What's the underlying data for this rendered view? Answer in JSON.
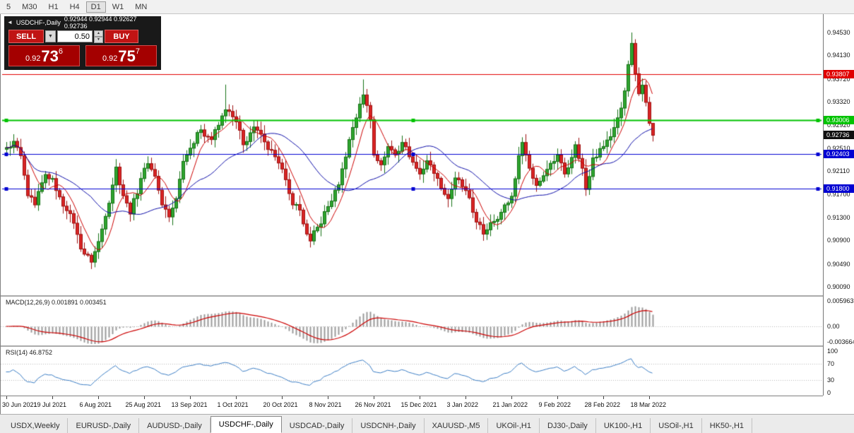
{
  "toolbar": {
    "timeframes": [
      {
        "label": "5",
        "active": false
      },
      {
        "label": "M30",
        "active": false
      },
      {
        "label": "H1",
        "active": false
      },
      {
        "label": "H4",
        "active": false
      },
      {
        "label": "D1",
        "active": true
      },
      {
        "label": "W1",
        "active": false
      },
      {
        "label": "MN",
        "active": false
      }
    ]
  },
  "trade_panel": {
    "collapse_icon": "◄",
    "sell_label": "SELL",
    "buy_label": "BUY",
    "volume": "0.50",
    "sell_price": {
      "base": "0.92",
      "big": "73",
      "sup": "6"
    },
    "buy_price": {
      "base": "0.92",
      "big": "75",
      "sup": "7"
    }
  },
  "chart_data": {
    "type": "candlestick",
    "title": "USDCHF-,Daily",
    "ohlc_text": "0.92944 0.92944 0.92627 0.92736",
    "last_ohlc": {
      "open": 0.92944,
      "high": 0.92944,
      "low": 0.92627,
      "close": 0.92736
    },
    "current_price": 0.92736,
    "current_price_label": "0.92736",
    "ylim": [
      0.899,
      0.9485
    ],
    "y_ticks": [
      "0.94530",
      "0.94130",
      "0.93720",
      "0.93320",
      "0.92920",
      "0.92510",
      "0.92110",
      "0.91700",
      "0.91300",
      "0.90900",
      "0.90490",
      "0.90090"
    ],
    "x_labels": [
      {
        "label": "30 Jun 2021",
        "index": 0
      },
      {
        "label": "19 Jul 2021",
        "index": 13
      },
      {
        "label": "6 Aug 2021",
        "index": 26
      },
      {
        "label": "25 Aug 2021",
        "index": 39
      },
      {
        "label": "13 Sep 2021",
        "index": 52
      },
      {
        "label": "1 Oct 2021",
        "index": 65
      },
      {
        "label": "20 Oct 2021",
        "index": 78
      },
      {
        "label": "8 Nov 2021",
        "index": 91
      },
      {
        "label": "26 Nov 2021",
        "index": 104
      },
      {
        "label": "15 Dec 2021",
        "index": 117
      },
      {
        "label": "3 Jan 2022",
        "index": 130
      },
      {
        "label": "21 Jan 2022",
        "index": 143
      },
      {
        "label": "9 Feb 2022",
        "index": 156
      },
      {
        "label": "28 Feb 2022",
        "index": 169
      },
      {
        "label": "18 Mar 2022",
        "index": 182
      }
    ],
    "candles_count": 184,
    "close_waypoints": [
      [
        0,
        0.9252
      ],
      [
        2,
        0.9263
      ],
      [
        4,
        0.9238
      ],
      [
        6,
        0.9168
      ],
      [
        8,
        0.9152
      ],
      [
        11,
        0.9205
      ],
      [
        13,
        0.9198
      ],
      [
        15,
        0.9166
      ],
      [
        17,
        0.9142
      ],
      [
        19,
        0.912
      ],
      [
        21,
        0.9075
      ],
      [
        24,
        0.9052
      ],
      [
        26,
        0.9088
      ],
      [
        28,
        0.9132
      ],
      [
        31,
        0.9218
      ],
      [
        33,
        0.9168
      ],
      [
        35,
        0.9136
      ],
      [
        38,
        0.9198
      ],
      [
        40,
        0.9224
      ],
      [
        42,
        0.9202
      ],
      [
        44,
        0.9152
      ],
      [
        46,
        0.9131
      ],
      [
        48,
        0.9163
      ],
      [
        50,
        0.9228
      ],
      [
        52,
        0.9251
      ],
      [
        55,
        0.9283
      ],
      [
        58,
        0.9266
      ],
      [
        60,
        0.9291
      ],
      [
        62,
        0.9318
      ],
      [
        65,
        0.9297
      ],
      [
        67,
        0.9257
      ],
      [
        70,
        0.9288
      ],
      [
        73,
        0.9262
      ],
      [
        76,
        0.9236
      ],
      [
        79,
        0.9196
      ],
      [
        81,
        0.9152
      ],
      [
        83,
        0.9143
      ],
      [
        86,
        0.9089
      ],
      [
        88,
        0.9113
      ],
      [
        91,
        0.9149
      ],
      [
        94,
        0.9187
      ],
      [
        97,
        0.9266
      ],
      [
        100,
        0.9328
      ],
      [
        101,
        0.9344
      ],
      [
        103,
        0.9301
      ],
      [
        104,
        0.9239
      ],
      [
        106,
        0.9222
      ],
      [
        108,
        0.9254
      ],
      [
        110,
        0.9241
      ],
      [
        112,
        0.9261
      ],
      [
        114,
        0.9236
      ],
      [
        117,
        0.9206
      ],
      [
        119,
        0.9229
      ],
      [
        121,
        0.9207
      ],
      [
        123,
        0.9181
      ],
      [
        125,
        0.9163
      ],
      [
        127,
        0.9199
      ],
      [
        130,
        0.9177
      ],
      [
        132,
        0.9139
      ],
      [
        135,
        0.9101
      ],
      [
        137,
        0.9121
      ],
      [
        140,
        0.9139
      ],
      [
        143,
        0.9167
      ],
      [
        145,
        0.9238
      ],
      [
        146,
        0.9261
      ],
      [
        148,
        0.9216
      ],
      [
        150,
        0.9186
      ],
      [
        153,
        0.9214
      ],
      [
        156,
        0.9239
      ],
      [
        158,
        0.9206
      ],
      [
        161,
        0.9257
      ],
      [
        163,
        0.9216
      ],
      [
        164,
        0.9179
      ],
      [
        166,
        0.9234
      ],
      [
        169,
        0.9254
      ],
      [
        171,
        0.9271
      ],
      [
        172,
        0.9287
      ],
      [
        174,
        0.9321
      ],
      [
        175,
        0.9351
      ],
      [
        176,
        0.9397
      ],
      [
        177,
        0.9434
      ],
      [
        178,
        0.9381
      ],
      [
        179,
        0.9346
      ],
      [
        180,
        0.9361
      ],
      [
        181,
        0.9331
      ],
      [
        182,
        0.92944
      ],
      [
        183,
        0.92736
      ]
    ],
    "special_candles": [
      {
        "i": 24,
        "l": 0.904
      },
      {
        "i": 62,
        "h": 0.9362
      },
      {
        "i": 101,
        "h": 0.9371
      },
      {
        "i": 177,
        "h": 0.9453
      },
      {
        "i": 183,
        "o": 0.92944,
        "h": 0.92944,
        "l": 0.92627,
        "c": 0.92736
      }
    ],
    "overlays": {
      "ma_fast": {
        "period": 7,
        "color": "#cc0000"
      },
      "ma_slow": {
        "period": 25,
        "color": "#0d0da8"
      }
    },
    "horizontal_lines": [
      {
        "price": 0.93807,
        "label": "0.93807",
        "color": "#e00000",
        "width": 1,
        "handles": false
      },
      {
        "price": 0.93006,
        "label": "0.93006",
        "color": "#00c300",
        "width": 2,
        "handles": true
      },
      {
        "price": 0.92403,
        "label": "0.92403",
        "color": "#0000d2",
        "width": 1,
        "handles": true
      },
      {
        "price": 0.918,
        "label": "0.91800",
        "color": "#0000d2",
        "width": 1,
        "handles": true
      }
    ],
    "macd": {
      "header": "MACD(12,26,9) 0.001891 0.003451",
      "fast": 12,
      "slow": 26,
      "signal": 9,
      "current": 0.001891,
      "current_signal": 0.003451,
      "axis": [
        {
          "text": "0.005963",
          "value": 0.005963
        },
        {
          "text": "0.00",
          "value": 0
        },
        {
          "text": "-0.003664",
          "value": -0.003664
        }
      ]
    },
    "rsi": {
      "header": "RSI(14) 46.8752",
      "period": 14,
      "current": 46.8752,
      "levels": [
        70,
        30
      ],
      "axis": [
        {
          "text": "100",
          "value": 100
        },
        {
          "text": "70",
          "value": 70
        },
        {
          "text": "30",
          "value": 30
        },
        {
          "text": "0",
          "value": 0
        }
      ]
    },
    "colors": {
      "up_body": "#2fa52f",
      "up_line": "#157015",
      "down_body": "#d92525",
      "down_line": "#9e1111",
      "macd_hist": "#9b9b9b",
      "macd_signal": "#cc0000",
      "rsi_line": "#3b7dc4",
      "level_dotted": "#b8b8b8",
      "current_price_label_bg": "#101010"
    }
  },
  "tabs_bar": {
    "active": "USDCHF-,Daily",
    "tabs": [
      "USDX,Weekly",
      "EURUSD-,Daily",
      "AUDUSD-,Daily",
      "USDCHF-,Daily",
      "USDCAD-,Daily",
      "USDCNH-,Daily",
      "XAUUSD-,M5",
      "UKOil-,H1",
      "DJ30-,Daily",
      "UK100-,H1",
      "USOil-,H1",
      "HK50-,H1"
    ]
  }
}
